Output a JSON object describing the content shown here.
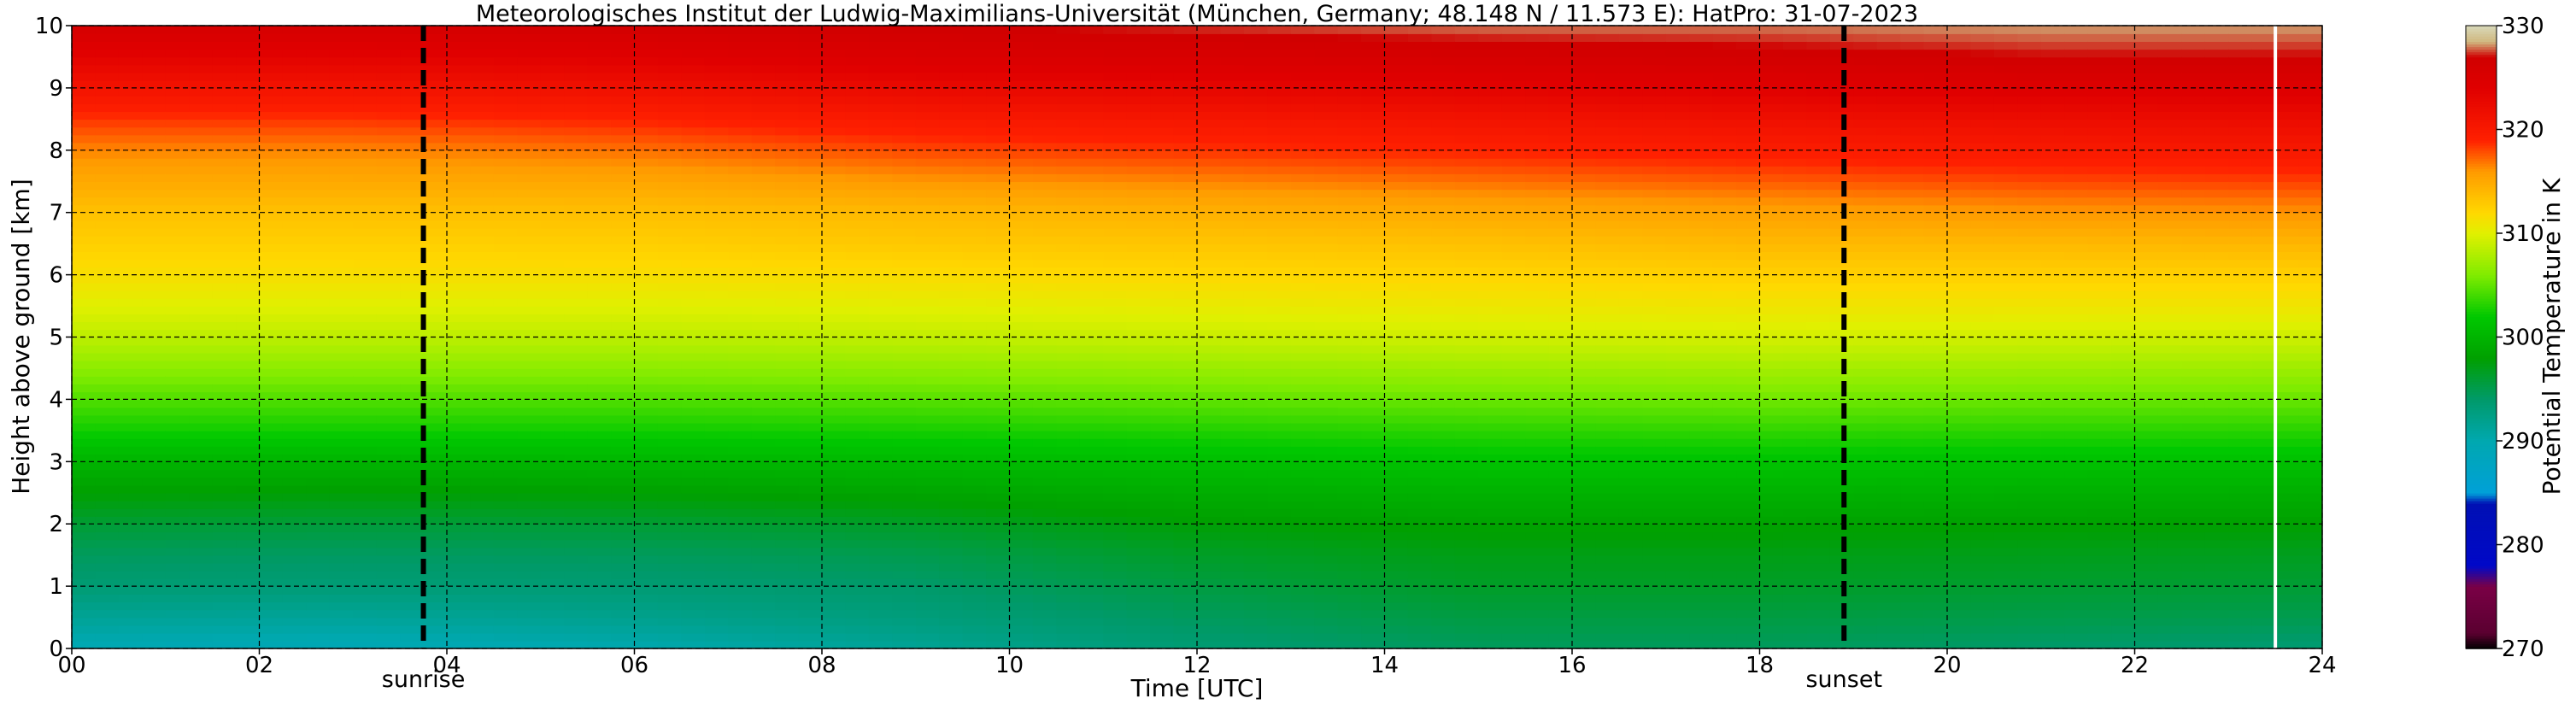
{
  "chart_data": {
    "type": "heatmap",
    "title": "Meteorologisches Institut der Ludwig-Maximilians-Universität (München, Germany; 48.148 N / 11.573 E):    HatPro: 31-07-2023",
    "xlabel": "Time [UTC]",
    "ylabel": "Height above ground [km]",
    "xlim": [
      0,
      24
    ],
    "ylim": [
      0,
      10
    ],
    "x_ticks": [
      "00",
      "02",
      "04",
      "06",
      "08",
      "10",
      "12",
      "14",
      "16",
      "18",
      "20",
      "22",
      "24"
    ],
    "y_ticks": [
      "0",
      "1",
      "2",
      "3",
      "4",
      "5",
      "6",
      "7",
      "8",
      "9",
      "10"
    ],
    "grid": true,
    "colorbar": {
      "label": "Potential Temperature in K",
      "min": 270,
      "max": 330,
      "ticks": [
        "270",
        "280",
        "290",
        "300",
        "310",
        "320",
        "330"
      ],
      "colors": [
        {
          "value": 270,
          "color": "#000000"
        },
        {
          "value": 271.5,
          "color": "#5a0030"
        },
        {
          "value": 276,
          "color": "#7a0046"
        },
        {
          "value": 278,
          "color": "#0008c8"
        },
        {
          "value": 284,
          "color": "#0010b4"
        },
        {
          "value": 285,
          "color": "#00a0d8"
        },
        {
          "value": 290,
          "color": "#00a8b0"
        },
        {
          "value": 294,
          "color": "#009a6a"
        },
        {
          "value": 298,
          "color": "#00a000"
        },
        {
          "value": 302,
          "color": "#00c800"
        },
        {
          "value": 306,
          "color": "#80ec00"
        },
        {
          "value": 310,
          "color": "#e0f000"
        },
        {
          "value": 312,
          "color": "#ffd800"
        },
        {
          "value": 316,
          "color": "#ff9a00"
        },
        {
          "value": 319,
          "color": "#ff2000"
        },
        {
          "value": 324,
          "color": "#e00000"
        },
        {
          "value": 327,
          "color": "#d00000"
        },
        {
          "value": 328.5,
          "color": "#d0b880"
        },
        {
          "value": 330,
          "color": "#d8d8b8"
        }
      ]
    },
    "profile_heights_km": [
      0,
      0.5,
      1,
      1.5,
      2,
      2.5,
      3,
      3.5,
      4,
      4.5,
      5,
      5.5,
      6,
      6.5,
      7,
      7.5,
      8,
      8.5,
      9,
      9.5,
      10
    ],
    "profiles": [
      {
        "time": 0,
        "theta": [
          289.5,
          291.5,
          293.5,
          294.5,
          296,
          298,
          300,
          302.5,
          304.5,
          306.5,
          308.5,
          310,
          311.5,
          312.5,
          313.5,
          315,
          316.5,
          318.5,
          321,
          323.5,
          326
        ]
      },
      {
        "time": 3,
        "theta": [
          289.3,
          291.3,
          293.3,
          294.3,
          295.8,
          297.8,
          300,
          302.5,
          304.5,
          306.5,
          308.5,
          310,
          311.5,
          312.5,
          313.5,
          315,
          316.5,
          318.5,
          321,
          323.5,
          326
        ]
      },
      {
        "time": 6,
        "theta": [
          290,
          292,
          293.5,
          294.5,
          296,
          298,
          300.2,
          302.5,
          304.5,
          306.5,
          308.5,
          310,
          311.5,
          312.6,
          313.6,
          315.2,
          317,
          319,
          321.5,
          324,
          326.5
        ]
      },
      {
        "time": 9,
        "theta": [
          291.5,
          293,
          294,
          295,
          296.5,
          298.5,
          300.5,
          302.7,
          304.7,
          306.7,
          308.7,
          310.2,
          311.7,
          313,
          314,
          316,
          318,
          320,
          322.5,
          325,
          327
        ]
      },
      {
        "time": 12,
        "theta": [
          293.5,
          294.5,
          295.5,
          296.5,
          297.8,
          299.3,
          301,
          303,
          305,
          307,
          309,
          310.5,
          312,
          313.2,
          314.5,
          316.5,
          318.5,
          320.5,
          323,
          325.5,
          327.5
        ]
      },
      {
        "time": 15,
        "theta": [
          294.5,
          295.5,
          296.5,
          297.2,
          298.3,
          299.8,
          301.5,
          303.3,
          305.3,
          307.3,
          309.3,
          310.8,
          312.2,
          313.5,
          315,
          317,
          319,
          321,
          323.5,
          326,
          328
        ]
      },
      {
        "time": 18,
        "theta": [
          294.5,
          295.5,
          296.5,
          297.2,
          298.3,
          299.8,
          301.5,
          303.5,
          305.5,
          307.5,
          309.5,
          311,
          312.5,
          314,
          315.5,
          317.5,
          319.5,
          321.5,
          324,
          326.5,
          328
        ]
      },
      {
        "time": 21,
        "theta": [
          294,
          295.2,
          296.2,
          297,
          298.1,
          299.6,
          301.3,
          303.3,
          305.3,
          307.3,
          309.3,
          311,
          312.5,
          314,
          316,
          318,
          320,
          322,
          324.5,
          327,
          328.3
        ]
      },
      {
        "time": 24,
        "theta": [
          293.5,
          295,
          296,
          296.8,
          298,
          299.5,
          301.2,
          303.2,
          305.2,
          307.2,
          309.2,
          311,
          312.5,
          314.2,
          316.2,
          318.2,
          320.2,
          322.2,
          324.5,
          327,
          328.3
        ]
      }
    ],
    "data_gap_after_time": 23.5,
    "markers": [
      {
        "label": "sunrise",
        "time": 3.75
      },
      {
        "label": "sunset",
        "time": 18.9
      }
    ]
  }
}
